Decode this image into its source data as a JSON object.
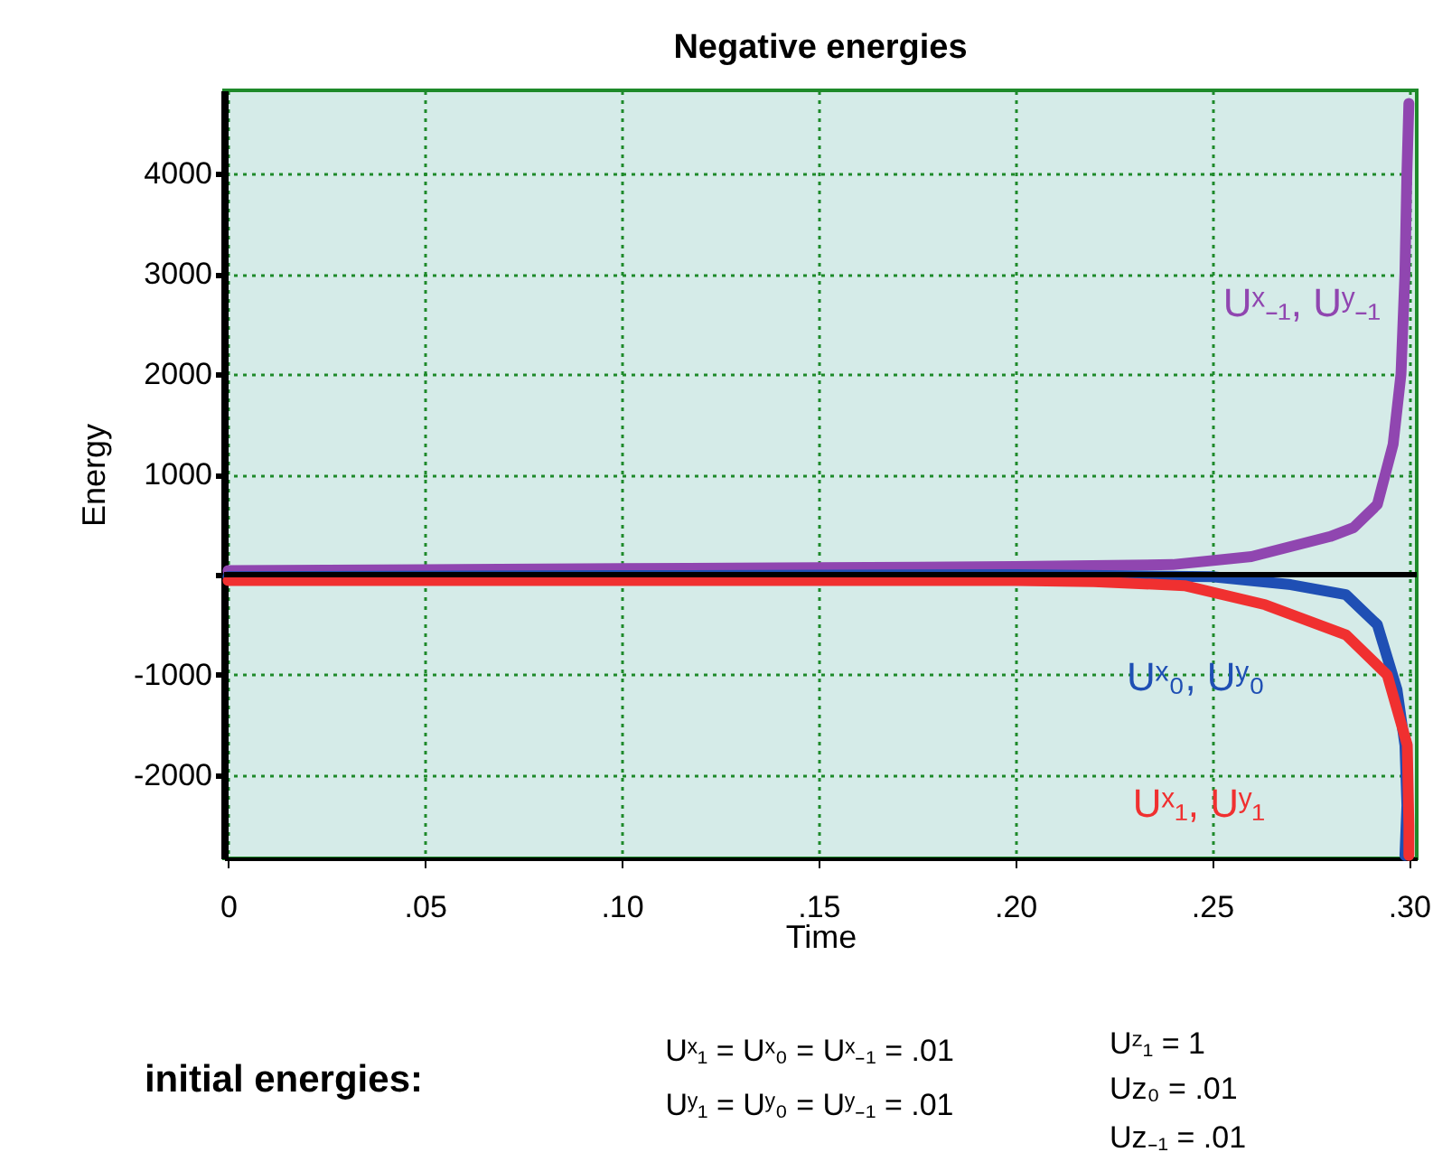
{
  "chart_data": {
    "type": "line",
    "title": "Negative energies",
    "xlabel": "Time",
    "ylabel": "Energy",
    "xlim": [
      -0.001,
      0.302
    ],
    "ylim": [
      -2830,
      4830
    ],
    "xticks": [
      {
        "value": 0,
        "label": "0"
      },
      {
        "value": 0.05,
        "label": ".05"
      },
      {
        "value": 0.1,
        "label": ".10"
      },
      {
        "value": 0.15,
        "label": ".15"
      },
      {
        "value": 0.2,
        "label": ".20"
      },
      {
        "value": 0.25,
        "label": ".25"
      },
      {
        "value": 0.3,
        "label": ".30"
      }
    ],
    "yticks": [
      -2000,
      -1000,
      {
        "value": 0,
        "label": null
      },
      1000,
      2000,
      3000,
      4000
    ],
    "grid": true,
    "marker": "none",
    "line_style": "solid",
    "ref_lines": [
      {
        "axis": "y",
        "value": 0,
        "color": "#000000"
      }
    ],
    "series": [
      {
        "name": "Uˣ₋₁, Uʸ₋₁",
        "color": "#9046b0",
        "x": [
          0,
          0.05,
          0.1,
          0.15,
          0.2,
          0.24,
          0.26,
          0.28,
          0.286,
          0.292,
          0.296,
          0.298,
          0.299,
          0.2995,
          0.3
        ],
        "values": [
          40,
          50,
          60,
          70,
          80,
          100,
          180,
          380,
          470,
          700,
          1300,
          2000,
          3000,
          4000,
          4700
        ]
      },
      {
        "name": "Uˣ₀, Uʸ₀",
        "color": "#1f4fb4",
        "x": [
          0,
          0.1,
          0.2,
          0.25,
          0.27,
          0.284,
          0.292,
          0.297,
          0.299,
          0.2995,
          0.299
        ],
        "values": [
          -20,
          -10,
          0,
          -20,
          -100,
          -200,
          -500,
          -1150,
          -1700,
          -2300,
          -2800
        ]
      },
      {
        "name": "Uˣ₁, Uʸ₁",
        "color": "#f03030",
        "x": [
          0,
          0.1,
          0.2,
          0.22,
          0.243,
          0.2635,
          0.284,
          0.2945,
          0.2996,
          0.3,
          0.3
        ],
        "values": [
          -60,
          -60,
          -60,
          -70,
          -110,
          -300,
          -600,
          -1000,
          -1700,
          -2500,
          -2800
        ]
      }
    ],
    "annotations": [
      "initial energies:",
      "Uˣ₁ = Uˣ₀ = Uˣ₋₁ = .01",
      "Uʸ₁ = Uʸ₀ = Uʸ₋₁ = .01",
      "Uᶻ₁ = 1",
      "Uz₀ = .01",
      "Uz₋₁ = .01"
    ]
  }
}
